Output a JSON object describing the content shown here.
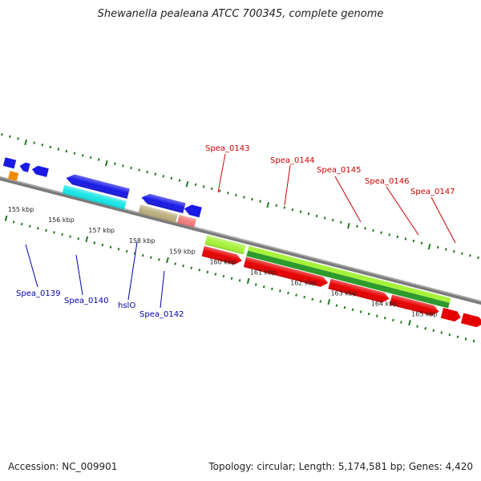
{
  "title": "Shewanella pealeana ATCC 700345, complete genome",
  "footer": {
    "accession": "Accession: NC_009901",
    "summary": "Topology: circular; Length: 5,174,581 bp; Genes: 4,420"
  },
  "colors": {
    "backbone": "#808080",
    "ticks": "#1f7a1f",
    "blue_label": "#0000aa",
    "red_label": "#cc0000"
  },
  "scale_labels": [
    "155 kbp",
    "156 kbp",
    "157 kbp",
    "158 kbp",
    "159 kbp",
    "160 kbp",
    "161 kbp",
    "162 kbp",
    "163 kbp",
    "164 kbp",
    "165 kbp"
  ],
  "genes": [
    {
      "label": "Spea_0139",
      "strand": "bottom"
    },
    {
      "label": "Spea_0140",
      "strand": "bottom"
    },
    {
      "label": "hslO",
      "strand": "bottom"
    },
    {
      "label": "Spea_0142",
      "strand": "bottom"
    },
    {
      "label": "Spea_0143",
      "strand": "top"
    },
    {
      "label": "Spea_0144",
      "strand": "top"
    },
    {
      "label": "Spea_0145",
      "strand": "top"
    },
    {
      "label": "Spea_0146",
      "strand": "top"
    },
    {
      "label": "Spea_0147",
      "strand": "top"
    }
  ]
}
